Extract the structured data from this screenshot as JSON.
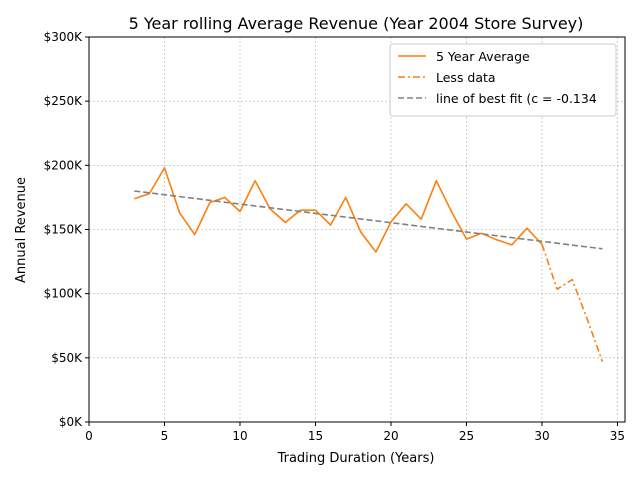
{
  "chart_data": {
    "type": "line",
    "title": "5 Year rolling Average Revenue (Year 2004 Store Survey)",
    "xlabel": "Trading Duration (Years)",
    "ylabel": "Annual Revenue",
    "xlim": [
      0,
      35.5
    ],
    "ylim": [
      0,
      300000
    ],
    "x_ticks": [
      0,
      5,
      10,
      15,
      20,
      25,
      30,
      35
    ],
    "x_tick_labels": [
      "0",
      "5",
      "10",
      "15",
      "20",
      "25",
      "30",
      "35"
    ],
    "y_ticks": [
      0,
      50000,
      100000,
      150000,
      200000,
      250000,
      300000
    ],
    "y_tick_labels": [
      "$0K",
      "$50K",
      "$100K",
      "$150K",
      "$200K",
      "$250K",
      "$300K"
    ],
    "grid": true,
    "legend_position": "top-right",
    "series": [
      {
        "name": "5 Year Average",
        "style": "solid",
        "color": "#ff7f0e",
        "x": [
          3,
          4,
          5,
          6,
          7,
          8,
          9,
          10,
          11,
          12,
          13,
          14,
          15,
          16,
          17,
          18,
          19,
          20,
          21,
          22,
          23,
          24,
          25,
          26,
          27,
          28,
          29,
          30
        ],
        "y": [
          174000,
          178000,
          198000,
          163000,
          146000,
          171000,
          175000,
          164000,
          188000,
          166000,
          155500,
          165000,
          165000,
          153500,
          175000,
          148000,
          132500,
          156000,
          170000,
          158000,
          188000,
          164000,
          142500,
          147000,
          142000,
          138000,
          151000,
          138500
        ]
      },
      {
        "name": "Less data",
        "style": "dashdot",
        "color": "#ff7f0e",
        "x": [
          30,
          31,
          32,
          33,
          34
        ],
        "y": [
          138500,
          103500,
          111000,
          80000,
          47000
        ]
      },
      {
        "name": "line of best fit (c = -0.134",
        "style": "dashed",
        "color": "#808080",
        "x": [
          3,
          34
        ],
        "y": [
          180000,
          135000
        ]
      }
    ]
  }
}
